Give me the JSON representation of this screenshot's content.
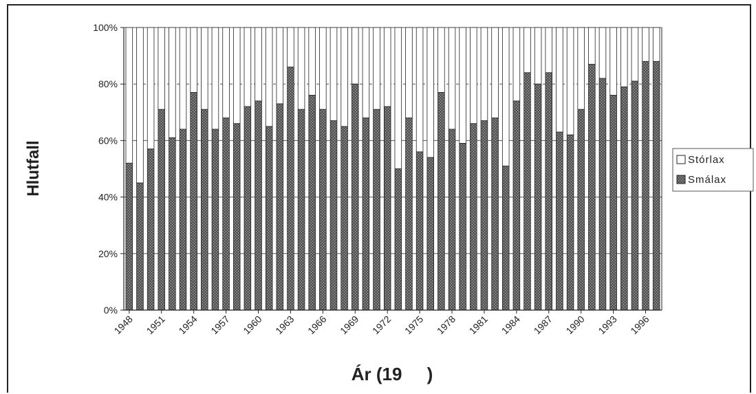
{
  "colors": {
    "smalax": "#6a6a6a",
    "storlax": "#ffffff",
    "outline": "#222222",
    "grid": "#555555"
  },
  "chart_data": {
    "type": "bar",
    "stacked": true,
    "percent": true,
    "title": "",
    "xlabel": "Ár (19     )",
    "ylabel": "Hlutfall",
    "ylim": [
      0,
      100
    ],
    "y_ticks": [
      "0%",
      "20%",
      "40%",
      "60%",
      "80%",
      "100%"
    ],
    "x": [
      1948,
      1949,
      1950,
      1951,
      1952,
      1953,
      1954,
      1955,
      1956,
      1957,
      1958,
      1959,
      1960,
      1961,
      1962,
      1963,
      1964,
      1965,
      1966,
      1967,
      1968,
      1969,
      1970,
      1971,
      1972,
      1973,
      1974,
      1975,
      1976,
      1977,
      1978,
      1979,
      1980,
      1981,
      1982,
      1983,
      1984,
      1985,
      1986,
      1987,
      1988,
      1989,
      1990,
      1991,
      1992,
      1993,
      1994,
      1995,
      1996,
      1997
    ],
    "x_tick_labels": [
      "1948",
      "1951",
      "1954",
      "1957",
      "1960",
      "1963",
      "1966",
      "1969",
      "1972",
      "1975",
      "1978",
      "1981",
      "1984",
      "1987",
      "1990",
      "1993",
      "1996"
    ],
    "legend_position": "right",
    "series": [
      {
        "name": "Smálax",
        "values": [
          52,
          45,
          57,
          71,
          61,
          64,
          77,
          71,
          64,
          68,
          66,
          72,
          74,
          65,
          73,
          86,
          71,
          76,
          71,
          67,
          65,
          80,
          68,
          71,
          72,
          50,
          68,
          56,
          54,
          77,
          64,
          59,
          66,
          67,
          68,
          51,
          74,
          84,
          80,
          84,
          63,
          62,
          71,
          87,
          82,
          76,
          79,
          81,
          88,
          88
        ]
      },
      {
        "name": "Stórlax",
        "values": [
          48,
          55,
          43,
          29,
          39,
          36,
          23,
          29,
          36,
          32,
          34,
          28,
          26,
          35,
          27,
          14,
          29,
          24,
          29,
          33,
          35,
          20,
          32,
          29,
          28,
          50,
          32,
          44,
          46,
          23,
          36,
          41,
          34,
          33,
          32,
          49,
          26,
          16,
          20,
          16,
          37,
          38,
          29,
          13,
          18,
          24,
          21,
          19,
          12,
          12
        ]
      }
    ],
    "legend": [
      "Stórlax",
      "Smálax"
    ]
  }
}
